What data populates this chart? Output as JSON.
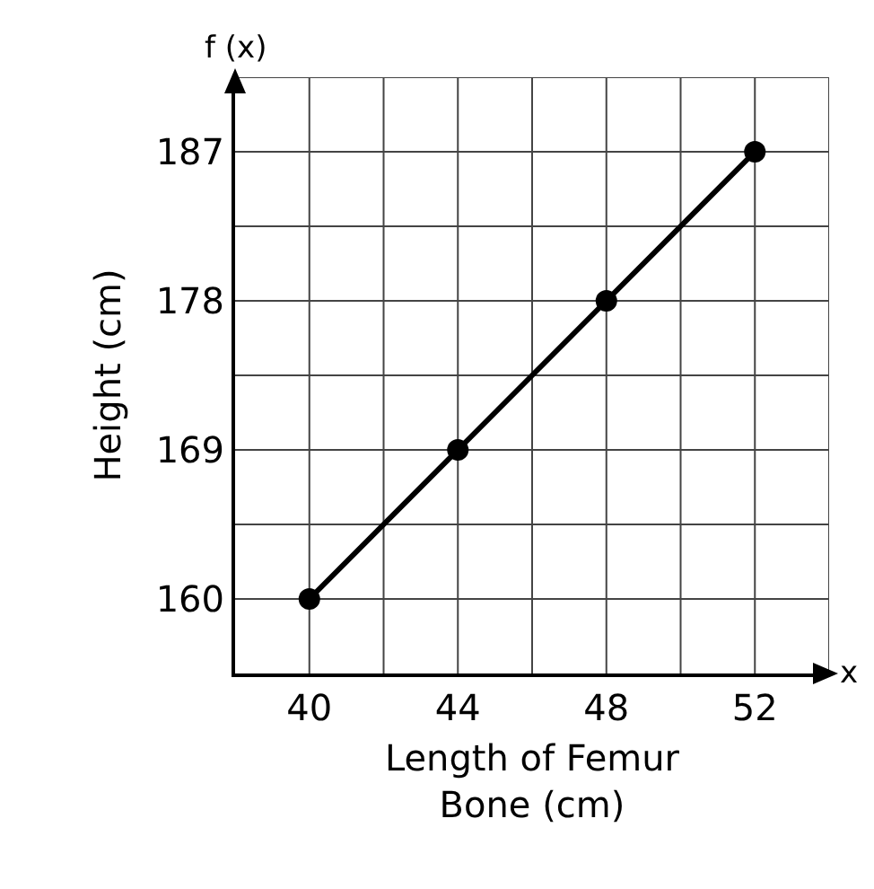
{
  "chart_data": {
    "type": "line",
    "xlabel": "Length of Femur Bone (cm)",
    "ylabel": "Height (cm)",
    "x": [
      40,
      44,
      48,
      52
    ],
    "series": [
      {
        "color": "#000000",
        "values": [
          160,
          169,
          178,
          187
        ]
      }
    ],
    "xlim": [
      38,
      54
    ],
    "xticks": [
      40,
      {
        "value": 42,
        "label": null
      },
      44,
      {
        "value": 46,
        "label": null
      },
      48,
      {
        "value": 50,
        "label": null
      },
      52,
      {
        "value": 54,
        "label": null
      }
    ],
    "ylim": [
      155.5,
      191.5
    ],
    "yticks": [
      160,
      {
        "value": 164.5,
        "label": null
      },
      169,
      {
        "value": 173.5,
        "label": null
      },
      178,
      {
        "value": 182.5,
        "label": null
      },
      187,
      {
        "value": 191.5,
        "label": null
      }
    ],
    "grid": true,
    "marker": "circle",
    "line_style": "solid",
    "annotations": [
      "f (x)",
      "x"
    ]
  }
}
